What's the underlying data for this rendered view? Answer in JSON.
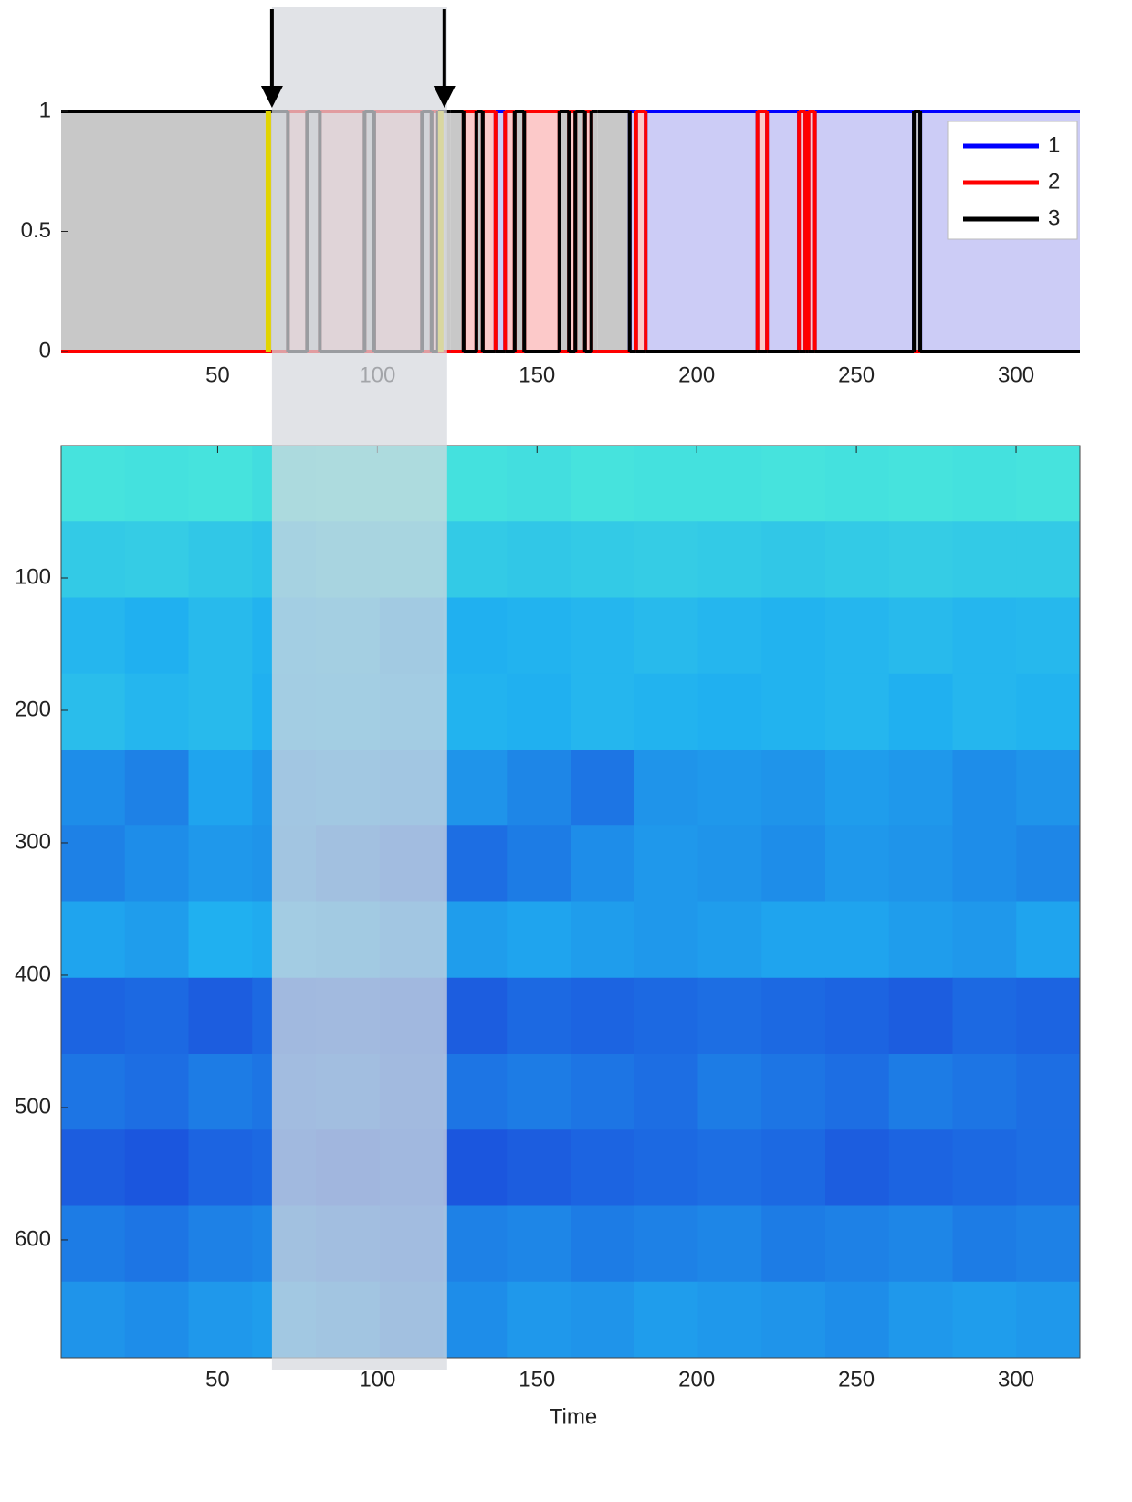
{
  "chart_data": [
    {
      "type": "states",
      "series": [
        {
          "name": "1",
          "color": "#0000ff",
          "fill": "#ccccf6"
        },
        {
          "name": "2",
          "color": "#ff0000",
          "fill": "#fcc9c9"
        },
        {
          "name": "3",
          "color": "#000000",
          "fill": "#c8c8c8"
        }
      ],
      "breaks": [
        1,
        65,
        67,
        72,
        78,
        82,
        96,
        99,
        114,
        117,
        119,
        121,
        123,
        127,
        131,
        133,
        137,
        140,
        143,
        146,
        157,
        160,
        162,
        165,
        167,
        169,
        179,
        181,
        184,
        187,
        219,
        222,
        232,
        234,
        235,
        237,
        268,
        270,
        320
      ],
      "states": [
        3,
        3,
        3,
        2,
        3,
        2,
        3,
        2,
        3,
        2,
        3,
        3,
        3,
        2,
        3,
        2,
        1,
        2,
        3,
        2,
        3,
        2,
        3,
        2,
        3,
        3,
        1,
        2,
        1,
        1,
        2,
        1,
        2,
        1,
        2,
        1,
        3,
        1
      ],
      "xlim": [
        1,
        320
      ],
      "xticks": [
        50,
        100,
        150,
        200,
        250,
        300
      ],
      "ylim": [
        0,
        1
      ],
      "yticks": [
        0,
        0.5,
        1
      ],
      "highlight": [
        67,
        121
      ],
      "legend": "upper right"
    },
    {
      "type": "heatmap",
      "xlabel": "Time",
      "xlim": [
        1,
        320
      ],
      "xticks": [
        50,
        100,
        150,
        200,
        250,
        300
      ],
      "ylim": [
        0,
        689
      ],
      "yticks": [
        100,
        200,
        300,
        400,
        500,
        600
      ],
      "colormap": [
        "#50f0d8",
        "#20b0f0",
        "#1a3ad8"
      ],
      "z": [
        [
          0.1,
          0.12,
          0.1,
          0.15,
          0.12,
          0.1,
          0.12,
          0.14,
          0.1,
          0.12,
          0.12,
          0.1,
          0.12,
          0.1,
          0.12,
          0.1
        ],
        [
          0.3,
          0.28,
          0.32,
          0.35,
          0.3,
          0.28,
          0.3,
          0.32,
          0.3,
          0.28,
          0.3,
          0.32,
          0.3,
          0.28,
          0.3,
          0.3
        ],
        [
          0.45,
          0.5,
          0.42,
          0.48,
          0.45,
          0.55,
          0.5,
          0.48,
          0.45,
          0.42,
          0.45,
          0.48,
          0.45,
          0.42,
          0.45,
          0.44
        ],
        [
          0.4,
          0.45,
          0.42,
          0.5,
          0.48,
          0.52,
          0.48,
          0.5,
          0.45,
          0.48,
          0.5,
          0.48,
          0.45,
          0.5,
          0.45,
          0.48
        ],
        [
          0.65,
          0.7,
          0.55,
          0.6,
          0.58,
          0.6,
          0.62,
          0.68,
          0.75,
          0.62,
          0.6,
          0.62,
          0.58,
          0.6,
          0.65,
          0.62
        ],
        [
          0.7,
          0.65,
          0.6,
          0.62,
          0.7,
          0.75,
          0.78,
          0.72,
          0.65,
          0.6,
          0.62,
          0.65,
          0.6,
          0.62,
          0.65,
          0.68
        ],
        [
          0.55,
          0.58,
          0.5,
          0.52,
          0.55,
          0.6,
          0.58,
          0.55,
          0.58,
          0.6,
          0.58,
          0.55,
          0.55,
          0.58,
          0.6,
          0.55
        ],
        [
          0.82,
          0.8,
          0.85,
          0.8,
          0.78,
          0.82,
          0.85,
          0.8,
          0.82,
          0.8,
          0.78,
          0.8,
          0.82,
          0.85,
          0.8,
          0.82
        ],
        [
          0.75,
          0.78,
          0.72,
          0.75,
          0.72,
          0.78,
          0.75,
          0.72,
          0.75,
          0.78,
          0.72,
          0.75,
          0.78,
          0.72,
          0.75,
          0.78
        ],
        [
          0.85,
          0.88,
          0.82,
          0.8,
          0.85,
          0.82,
          0.88,
          0.85,
          0.82,
          0.8,
          0.78,
          0.8,
          0.85,
          0.82,
          0.8,
          0.78
        ],
        [
          0.72,
          0.75,
          0.7,
          0.68,
          0.72,
          0.75,
          0.7,
          0.68,
          0.72,
          0.7,
          0.68,
          0.72,
          0.7,
          0.68,
          0.72,
          0.7
        ],
        [
          0.62,
          0.65,
          0.6,
          0.58,
          0.62,
          0.7,
          0.65,
          0.6,
          0.62,
          0.58,
          0.6,
          0.62,
          0.65,
          0.6,
          0.58,
          0.6
        ]
      ]
    }
  ]
}
